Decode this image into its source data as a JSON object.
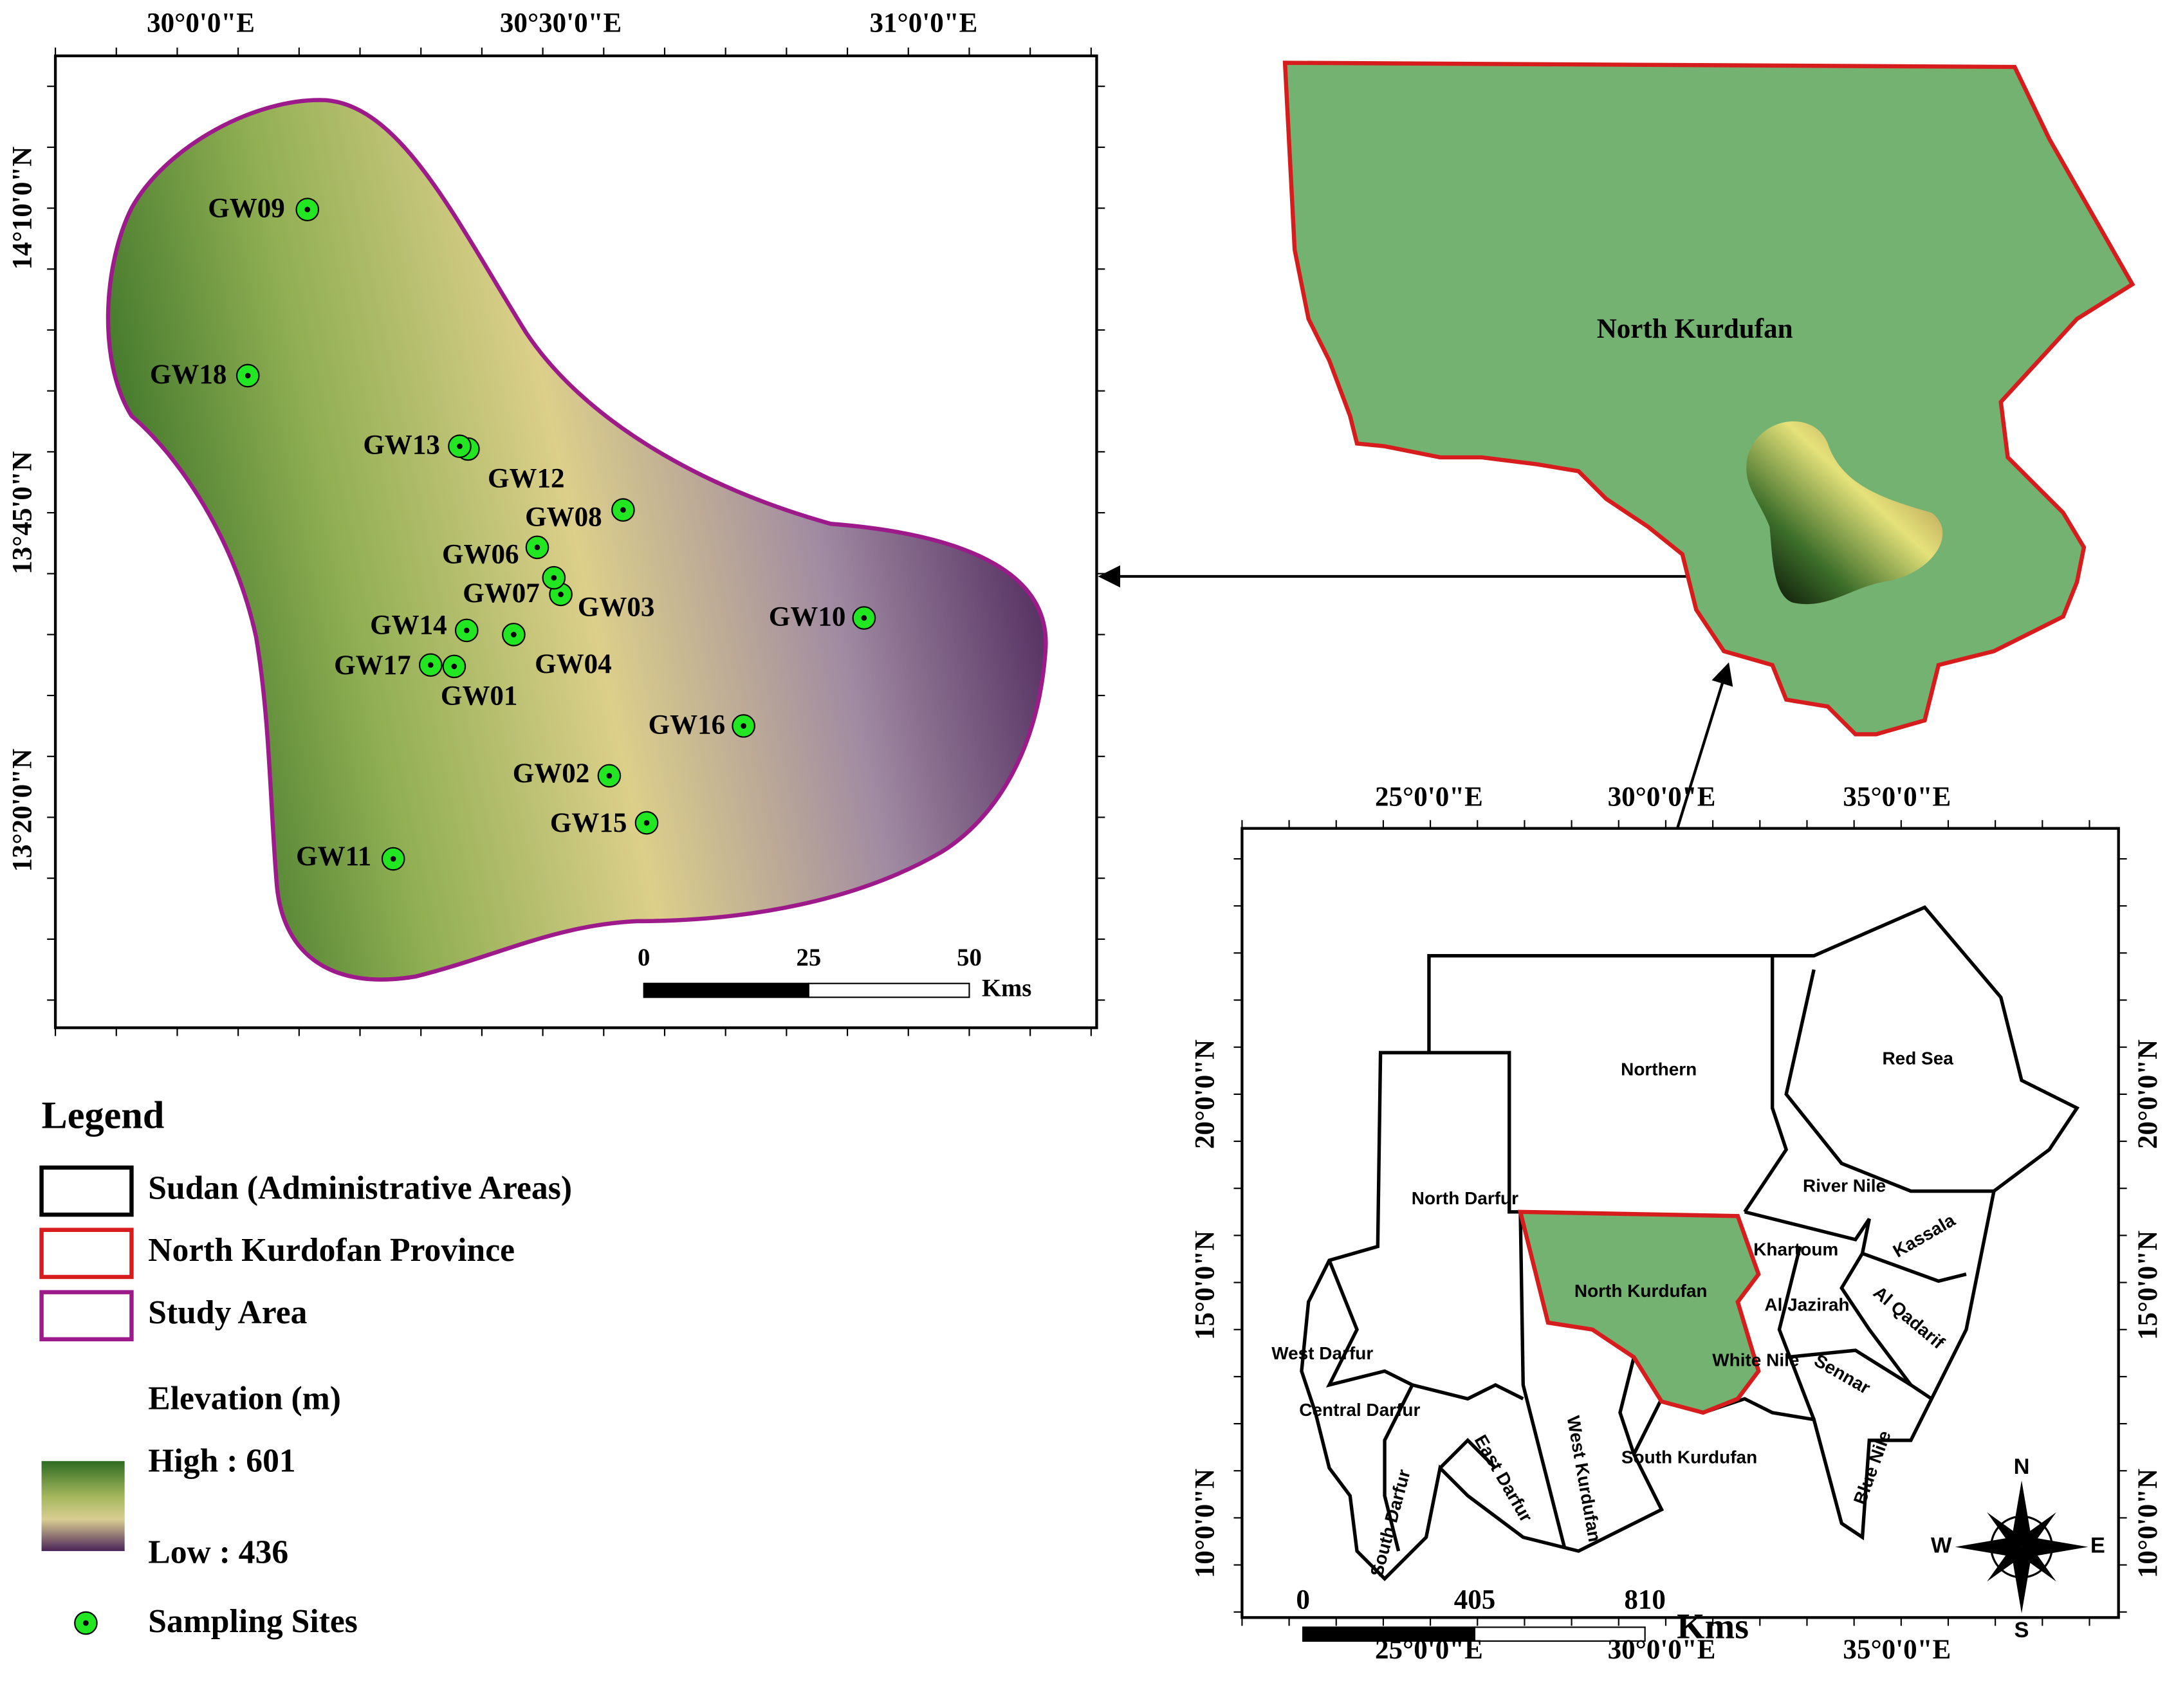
{
  "study_map": {
    "lon_labels": [
      "30°0'0\"E",
      "30°30'0\"E",
      "31°0'0\"E"
    ],
    "lat_labels": [
      "14°10'0\"N",
      "13°45'0\"N",
      "13°20'0\"N"
    ],
    "sites": [
      "GW09",
      "GW18",
      "GW13",
      "GW12",
      "GW08",
      "GW06",
      "GW07",
      "GW03",
      "GW10",
      "GW14",
      "GW04",
      "GW17",
      "GW01",
      "GW16",
      "GW02",
      "GW15",
      "GW11"
    ],
    "scale": {
      "ticks": [
        0,
        25,
        50
      ],
      "unit": "Kms"
    }
  },
  "locator_map": {
    "label": "North Kurdufan"
  },
  "sudan_map": {
    "lon_labels": [
      "25°0'0\"E",
      "30°0'0\"E",
      "35°0'0\"E"
    ],
    "lat_labels": [
      "20°0'0\"N",
      "15°0'0\"N",
      "10°0'0\"N"
    ],
    "regions": [
      "Northern",
      "Red Sea",
      "River Nile",
      "North Darfur",
      "Khartoum",
      "Kassala",
      "North Kurdufan",
      "Al Jazirah",
      "Al Qadarif",
      "West Darfur",
      "White Nile",
      "Sennar",
      "Central Darfur",
      "West Kurdufan",
      "East Darfur",
      "South Kurdufan",
      "South Darfur",
      "Blue Nile"
    ],
    "scale": {
      "ticks": [
        0,
        405,
        810
      ],
      "unit": "Kms"
    },
    "compass": {
      "n": "N",
      "e": "E",
      "s": "S",
      "w": "W"
    }
  },
  "legend": {
    "title": "Legend",
    "items": [
      "Sudan (Administrative Areas)",
      "North Kurdofan Province",
      "Study Area"
    ],
    "elevation_title": "Elevation (m)",
    "high": "High : 601",
    "low": "Low : 436",
    "sites": "Sampling Sites"
  }
}
